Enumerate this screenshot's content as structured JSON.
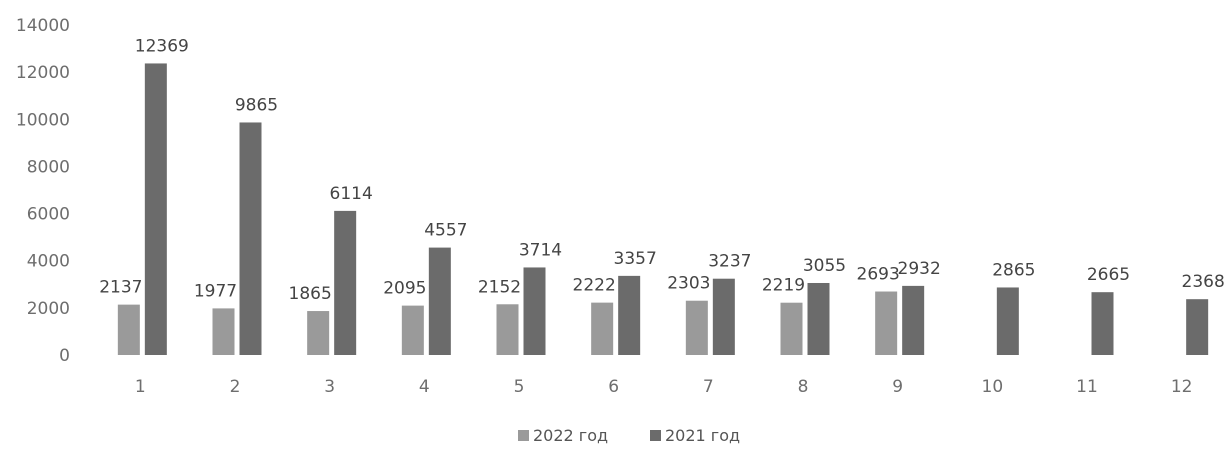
{
  "chart_data": {
    "type": "bar",
    "categories": [
      "1",
      "2",
      "3",
      "4",
      "5",
      "6",
      "7",
      "8",
      "9",
      "10",
      "11",
      "12"
    ],
    "series": [
      {
        "name": "2022 год",
        "color": "#9a9a9a",
        "values": [
          2137,
          1977,
          1865,
          2095,
          2152,
          2222,
          2303,
          2219,
          2693,
          null,
          null,
          null
        ]
      },
      {
        "name": "2021 год",
        "color": "#6b6b6b",
        "values": [
          12369,
          9865,
          6114,
          4557,
          3714,
          3357,
          3237,
          3055,
          2932,
          2865,
          2665,
          2368
        ]
      }
    ],
    "yticks": [
      "0",
      "2000",
      "4000",
      "6000",
      "8000",
      "10000",
      "12000",
      "14000"
    ],
    "ylim": [
      0,
      14000
    ],
    "grid": false,
    "legend_position": "bottom-center",
    "title": "",
    "xlabel": "",
    "ylabel": ""
  }
}
